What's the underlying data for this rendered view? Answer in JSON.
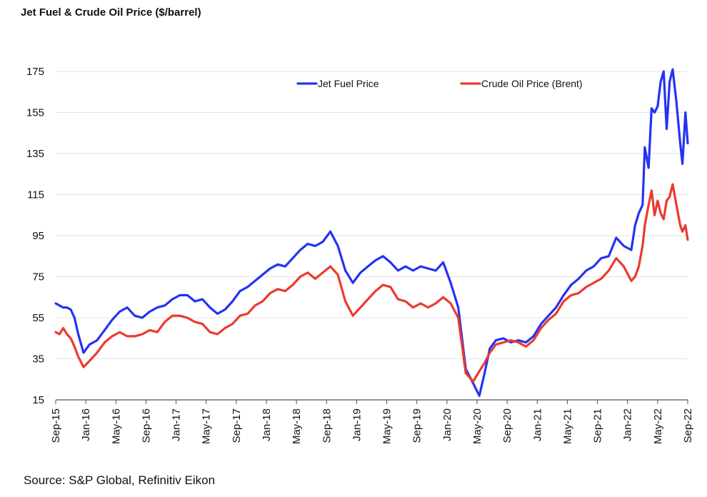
{
  "chart_data": {
    "type": "line",
    "title": "Jet Fuel & Crude Oil Price ($/barrel)",
    "source": "Source: S&P Global, Refinitiv Eikon",
    "xlabel": "",
    "ylabel": "",
    "ylim": [
      15,
      180
    ],
    "yticks": [
      "175",
      "155",
      "135",
      "115",
      "95",
      "75",
      "55",
      "35",
      "15"
    ],
    "ytick_values": [
      175,
      155,
      135,
      115,
      95,
      75,
      55,
      35,
      15
    ],
    "xlim": [
      0,
      84
    ],
    "xticks": [
      "Sep-15",
      "Jan-16",
      "May-16",
      "Sep-16",
      "Jan-17",
      "May-17",
      "Sep-17",
      "Jan-18",
      "May-18",
      "Sep-18",
      "Jan-19",
      "May-19",
      "Sep-19",
      "Jan-20",
      "May-20",
      "Sep-20",
      "Jan-21",
      "May-21",
      "Sep-21",
      "Jan-22",
      "May-22",
      "Sep-22"
    ],
    "xtick_values": [
      0,
      4,
      8,
      12,
      16,
      20,
      24,
      28,
      32,
      36,
      40,
      44,
      48,
      52,
      56,
      60,
      64,
      68,
      72,
      76,
      80,
      84
    ],
    "x_unit": "months since Sep-15",
    "grid": "horizontal",
    "legend_position": "top-right",
    "series": [
      {
        "name": "Jet Fuel Price",
        "color": "#2433f2",
        "points": [
          [
            0,
            62
          ],
          [
            0.5,
            61
          ],
          [
            1,
            60
          ],
          [
            1.5,
            60
          ],
          [
            2,
            59
          ],
          [
            2.5,
            55
          ],
          [
            3,
            47
          ],
          [
            3.7,
            38
          ],
          [
            4.5,
            42
          ],
          [
            5.5,
            44
          ],
          [
            6.5,
            49
          ],
          [
            7.5,
            54
          ],
          [
            8.5,
            58
          ],
          [
            9.5,
            60
          ],
          [
            10.5,
            56
          ],
          [
            11.5,
            55
          ],
          [
            12.5,
            58
          ],
          [
            13.5,
            60
          ],
          [
            14.5,
            61
          ],
          [
            15.5,
            64
          ],
          [
            16.5,
            66
          ],
          [
            17.5,
            66
          ],
          [
            18.5,
            63
          ],
          [
            19.5,
            64
          ],
          [
            20.5,
            60
          ],
          [
            21.5,
            57
          ],
          [
            22.5,
            59
          ],
          [
            23.5,
            63
          ],
          [
            24.5,
            68
          ],
          [
            25.5,
            70
          ],
          [
            26.5,
            73
          ],
          [
            27.5,
            76
          ],
          [
            28.5,
            79
          ],
          [
            29.5,
            81
          ],
          [
            30.5,
            80
          ],
          [
            31.5,
            84
          ],
          [
            32.5,
            88
          ],
          [
            33.5,
            91
          ],
          [
            34.5,
            90
          ],
          [
            35.5,
            92
          ],
          [
            36.5,
            97
          ],
          [
            37.5,
            90
          ],
          [
            38.5,
            78
          ],
          [
            39.5,
            72
          ],
          [
            40.5,
            77
          ],
          [
            41.5,
            80
          ],
          [
            42.5,
            83
          ],
          [
            43.5,
            85
          ],
          [
            44.5,
            82
          ],
          [
            45.5,
            78
          ],
          [
            46.5,
            80
          ],
          [
            47.5,
            78
          ],
          [
            48.5,
            80
          ],
          [
            49.5,
            79
          ],
          [
            50.5,
            78
          ],
          [
            51.5,
            82
          ],
          [
            52.5,
            72
          ],
          [
            53.5,
            60
          ],
          [
            54.5,
            30
          ],
          [
            55.5,
            23
          ],
          [
            56.3,
            17
          ],
          [
            57,
            28
          ],
          [
            57.7,
            40
          ],
          [
            58.5,
            44
          ],
          [
            59.5,
            45
          ],
          [
            60.5,
            43
          ],
          [
            61.5,
            44
          ],
          [
            62.5,
            43
          ],
          [
            63.5,
            46
          ],
          [
            64.5,
            52
          ],
          [
            65.5,
            56
          ],
          [
            66.5,
            60
          ],
          [
            67.5,
            66
          ],
          [
            68.5,
            71
          ],
          [
            69.5,
            74
          ],
          [
            70.5,
            78
          ],
          [
            71.5,
            80
          ],
          [
            72.5,
            84
          ],
          [
            73.5,
            85
          ],
          [
            74.5,
            94
          ],
          [
            75.5,
            90
          ],
          [
            76.5,
            88
          ],
          [
            77,
            100
          ],
          [
            77.5,
            106
          ],
          [
            78,
            110
          ],
          [
            78.3,
            138
          ],
          [
            78.8,
            128
          ],
          [
            79.2,
            157
          ],
          [
            79.6,
            155
          ],
          [
            80,
            158
          ],
          [
            80.4,
            170
          ],
          [
            80.8,
            175
          ],
          [
            81.2,
            147
          ],
          [
            81.6,
            170
          ],
          [
            82,
            176
          ],
          [
            82.5,
            160
          ],
          [
            83,
            140
          ],
          [
            83.3,
            130
          ],
          [
            83.7,
            155
          ],
          [
            84,
            140
          ]
        ]
      },
      {
        "name": "Crude Oil Price (Brent)",
        "color": "#ea3b2e",
        "points": [
          [
            0,
            48
          ],
          [
            0.5,
            47
          ],
          [
            1,
            50
          ],
          [
            1.5,
            47
          ],
          [
            2,
            45
          ],
          [
            2.5,
            41
          ],
          [
            3,
            36
          ],
          [
            3.7,
            31
          ],
          [
            4.5,
            34
          ],
          [
            5.5,
            38
          ],
          [
            6.5,
            43
          ],
          [
            7.5,
            46
          ],
          [
            8.5,
            48
          ],
          [
            9.5,
            46
          ],
          [
            10.5,
            46
          ],
          [
            11.5,
            47
          ],
          [
            12.5,
            49
          ],
          [
            13.5,
            48
          ],
          [
            14.5,
            53
          ],
          [
            15.5,
            56
          ],
          [
            16.5,
            56
          ],
          [
            17.5,
            55
          ],
          [
            18.5,
            53
          ],
          [
            19.5,
            52
          ],
          [
            20.5,
            48
          ],
          [
            21.5,
            47
          ],
          [
            22.5,
            50
          ],
          [
            23.5,
            52
          ],
          [
            24.5,
            56
          ],
          [
            25.5,
            57
          ],
          [
            26.5,
            61
          ],
          [
            27.5,
            63
          ],
          [
            28.5,
            67
          ],
          [
            29.5,
            69
          ],
          [
            30.5,
            68
          ],
          [
            31.5,
            71
          ],
          [
            32.5,
            75
          ],
          [
            33.5,
            77
          ],
          [
            34.5,
            74
          ],
          [
            35.5,
            77
          ],
          [
            36.5,
            80
          ],
          [
            37.5,
            76
          ],
          [
            38.5,
            63
          ],
          [
            39.5,
            56
          ],
          [
            40.5,
            60
          ],
          [
            41.5,
            64
          ],
          [
            42.5,
            68
          ],
          [
            43.5,
            71
          ],
          [
            44.5,
            70
          ],
          [
            45.5,
            64
          ],
          [
            46.5,
            63
          ],
          [
            47.5,
            60
          ],
          [
            48.5,
            62
          ],
          [
            49.5,
            60
          ],
          [
            50.5,
            62
          ],
          [
            51.5,
            65
          ],
          [
            52.5,
            62
          ],
          [
            53.5,
            55
          ],
          [
            54.5,
            28
          ],
          [
            55.5,
            24
          ],
          [
            56.3,
            29
          ],
          [
            57,
            33
          ],
          [
            57.7,
            38
          ],
          [
            58.5,
            42
          ],
          [
            59.5,
            43
          ],
          [
            60.5,
            44
          ],
          [
            61.5,
            43
          ],
          [
            62.5,
            41
          ],
          [
            63.5,
            44
          ],
          [
            64.5,
            50
          ],
          [
            65.5,
            54
          ],
          [
            66.5,
            57
          ],
          [
            67.5,
            63
          ],
          [
            68.5,
            66
          ],
          [
            69.5,
            67
          ],
          [
            70.5,
            70
          ],
          [
            71.5,
            72
          ],
          [
            72.5,
            74
          ],
          [
            73.5,
            78
          ],
          [
            74.5,
            84
          ],
          [
            75.5,
            80
          ],
          [
            76.5,
            73
          ],
          [
            77,
            75
          ],
          [
            77.5,
            80
          ],
          [
            78,
            90
          ],
          [
            78.3,
            100
          ],
          [
            78.8,
            110
          ],
          [
            79.2,
            117
          ],
          [
            79.6,
            105
          ],
          [
            80,
            112
          ],
          [
            80.4,
            106
          ],
          [
            80.8,
            103
          ],
          [
            81.2,
            112
          ],
          [
            81.6,
            114
          ],
          [
            82,
            120
          ],
          [
            82.5,
            110
          ],
          [
            83,
            100
          ],
          [
            83.3,
            97
          ],
          [
            83.7,
            100
          ],
          [
            84,
            93
          ]
        ]
      }
    ]
  }
}
